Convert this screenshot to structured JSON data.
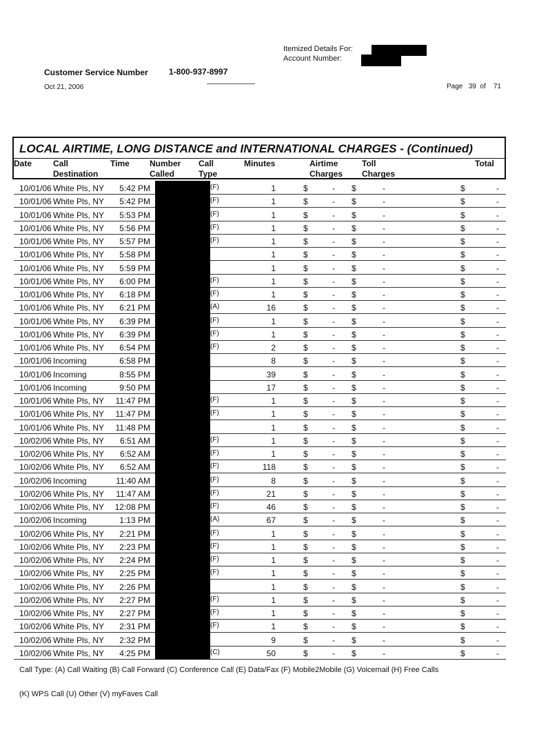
{
  "header": {
    "itemized_label": "Itemized Details For:",
    "account_label": "Account Number:",
    "customer_service_label": "Customer Service Number",
    "customer_service_number": "1-800-937-8997",
    "date": "Oct 21, 2006",
    "page_label": "Page",
    "page_current": "39",
    "page_of": "of",
    "page_total": "71"
  },
  "table": {
    "title": "LOCAL AIRTIME, LONG DISTANCE and INTERNATIONAL CHARGES  - (Continued)",
    "columns": [
      "Date",
      "Call Destination",
      "Time",
      "Number Called",
      "Call Type",
      "Minutes",
      "Airtime Charges",
      "Toll Charges",
      "Total"
    ],
    "rows": [
      [
        "10/01/06",
        "White Pls, NY",
        "5:42 PM",
        "(F)",
        "1"
      ],
      [
        "10/01/06",
        "White Pls, NY",
        "5:42 PM",
        "(F)",
        "1"
      ],
      [
        "10/01/06",
        "White Pls, NY",
        "5:53 PM",
        "(F)",
        "1"
      ],
      [
        "10/01/06",
        "White Pls, NY",
        "5:56 PM",
        "(F)",
        "1"
      ],
      [
        "10/01/06",
        "White Pls, NY",
        "5:57 PM",
        "(F)",
        "1"
      ],
      [
        "10/01/06",
        "White Pls, NY",
        "5:58 PM",
        "",
        "1"
      ],
      [
        "10/01/06",
        "White Pls, NY",
        "5:59 PM",
        "",
        "1"
      ],
      [
        "10/01/06",
        "White Pls, NY",
        "6:00 PM",
        "(F)",
        "1"
      ],
      [
        "10/01/06",
        "White Pls, NY",
        "6:18 PM",
        "(F)",
        "1"
      ],
      [
        "10/01/06",
        "White Pls, NY",
        "6:21 PM",
        "(A)",
        "16"
      ],
      [
        "10/01/06",
        "White Pls, NY",
        "6:39 PM",
        "(F)",
        "1"
      ],
      [
        "10/01/06",
        "White Pls, NY",
        "6:39 PM",
        "(F)",
        "1"
      ],
      [
        "10/01/06",
        "White Pls, NY",
        "6:54 PM",
        "(F)",
        "2"
      ],
      [
        "10/01/06",
        "Incoming",
        "6:58 PM",
        "",
        "8"
      ],
      [
        "10/01/06",
        "Incoming",
        "8:55 PM",
        "",
        "39"
      ],
      [
        "10/01/06",
        "Incoming",
        "9:50 PM",
        "",
        "17"
      ],
      [
        "10/01/06",
        "White Pls, NY",
        "11:47 PM",
        "(F)",
        "1"
      ],
      [
        "10/01/06",
        "White Pls, NY",
        "11:47 PM",
        "(F)",
        "1"
      ],
      [
        "10/01/06",
        "White Pls, NY",
        "11:48 PM",
        "",
        "1"
      ],
      [
        "10/02/06",
        "White Pls, NY",
        "6:51 AM",
        "(F)",
        "1"
      ],
      [
        "10/02/06",
        "White Pls, NY",
        "6:52 AM",
        "(F)",
        "1"
      ],
      [
        "10/02/06",
        "White Pls, NY",
        "6:52 AM",
        "(F)",
        "118"
      ],
      [
        "10/02/06",
        "Incoming",
        "11:40 AM",
        "(F)",
        "8"
      ],
      [
        "10/02/06",
        "White Pls, NY",
        "11:47 AM",
        "(F)",
        "21"
      ],
      [
        "10/02/06",
        "White Pls, NY",
        "12:08 PM",
        "(F)",
        "46"
      ],
      [
        "10/02/06",
        "Incoming",
        "1:13 PM",
        "(A)",
        "67"
      ],
      [
        "10/02/06",
        "White Pls, NY",
        "2:21 PM",
        "(F)",
        "1"
      ],
      [
        "10/02/06",
        "White Pls, NY",
        "2:23 PM",
        "(F)",
        "1"
      ],
      [
        "10/02/06",
        "White Pls, NY",
        "2:24 PM",
        "(F)",
        "1"
      ],
      [
        "10/02/06",
        "White Pls, NY",
        "2:25 PM",
        "(F)",
        "1"
      ],
      [
        "10/02/06",
        "White Pls, NY",
        "2:26 PM",
        "",
        "1"
      ],
      [
        "10/02/06",
        "White Pls, NY",
        "2:27 PM",
        "(F)",
        "1"
      ],
      [
        "10/02/06",
        "White Pls, NY",
        "2:27 PM",
        "(F)",
        "1"
      ],
      [
        "10/02/06",
        "White Pls, NY",
        "2:31 PM",
        "(F)",
        "1"
      ],
      [
        "10/02/06",
        "White Pls, NY",
        "2:32 PM",
        "",
        "9"
      ],
      [
        "10/02/06",
        "White Pls, NY",
        "4:25 PM",
        "(C)",
        "50"
      ]
    ],
    "currency_symbol": "$",
    "zero_charge": "-"
  },
  "footer": {
    "legend_line1": "Call Type: (A) Call Waiting (B) Call Forward (C) Conference Call (E) Data/Fax (F) Mobile2Mobile (G) Voicemail (H) Free Calls",
    "legend_line2": "(K) WPS Call (U) Other (V) myFaves Call"
  }
}
